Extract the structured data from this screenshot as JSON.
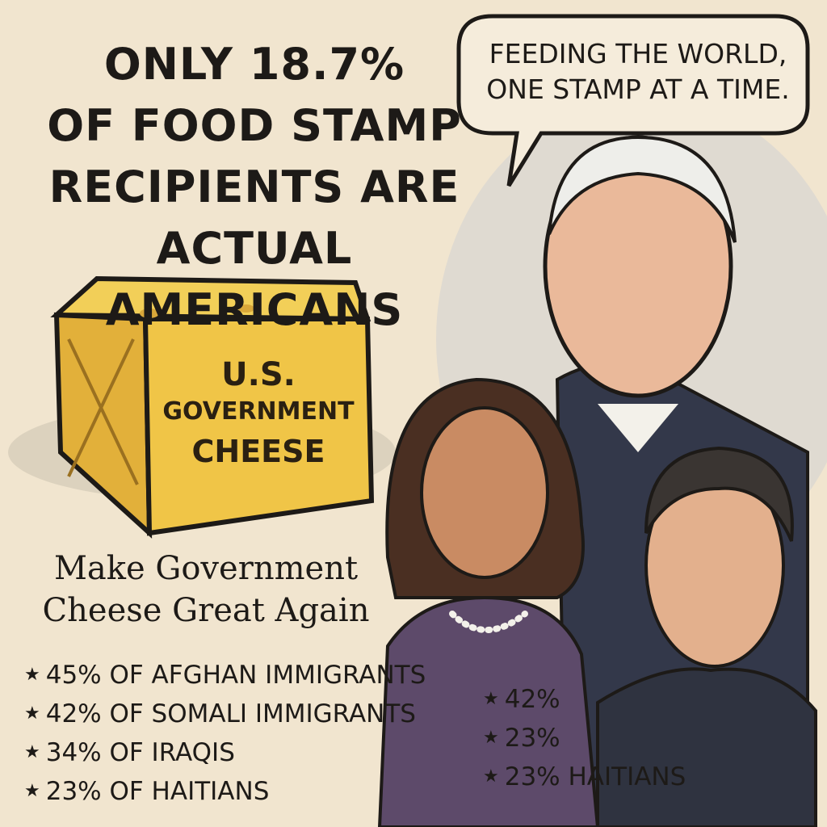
{
  "headline": {
    "lines": [
      "ONLY 18.7%",
      "OF FOOD STAMP",
      "RECIPIENTS ARE",
      "ACTUAL AMERICANS"
    ]
  },
  "speech_bubble": {
    "lines": [
      "FEEDING THE WORLD,",
      "ONE STAMP AT A TIME."
    ]
  },
  "cheese_label": {
    "lines": [
      "U.S.",
      "GOVERNMENT",
      "CHEESE"
    ]
  },
  "slogan": {
    "lines": [
      "Make Government",
      "Cheese Great Again"
    ]
  },
  "list": {
    "items": [
      "45% OF AFGHAN IMMIGRANTS",
      "42% OF SOMALI IMMIGRANTS",
      "34% OF IRAQIS",
      "23% OF HAITIANS"
    ]
  },
  "side_list": {
    "items": [
      "42%",
      "23%",
      "23% HAITIANS"
    ]
  }
}
